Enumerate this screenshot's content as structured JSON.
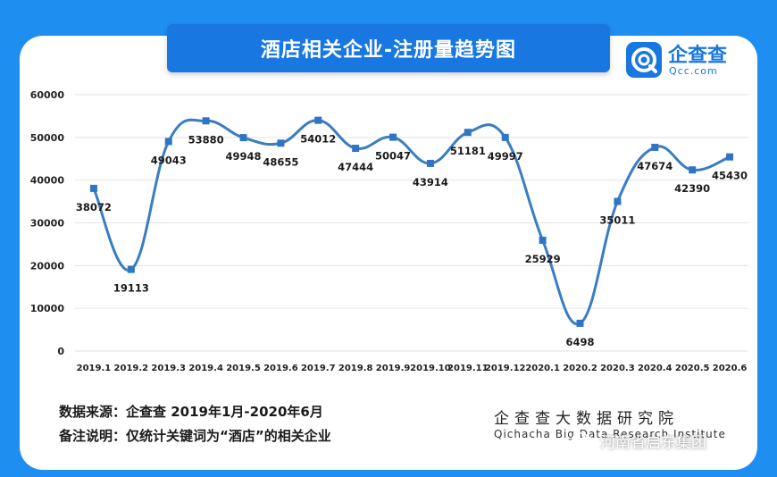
{
  "header": {
    "title": "酒店相关企业-注册量趋势图"
  },
  "logo": {
    "name_cn": "企查查",
    "name_en": "Qcc.com",
    "icon": "qcc-logo-icon"
  },
  "footer": {
    "source": "数据来源：企查查 2019年1月-2020年6月",
    "note": "备注说明：仅统计关键词为“酒店”的相关企业",
    "org_cn": "企查查大数据研究院",
    "org_en": "Qichacha Big Data Research Institute",
    "wechat_account": "河南省启东集团",
    "wechat_icon": "wechat-icon"
  },
  "colors": {
    "background": "#1e8ef0",
    "banner": "#1877e0",
    "line": "#3a7dc0",
    "marker": "#2f75c4",
    "grid": "#e2e2e2"
  },
  "chart_data": {
    "type": "line",
    "title": "",
    "xlabel": "",
    "ylabel": "",
    "categories": [
      "2019.1",
      "2019.2",
      "2019.3",
      "2019.4",
      "2019.5",
      "2019.6",
      "2019.7",
      "2019.8",
      "2019.9",
      "2019.10",
      "2019.11",
      "2019.12",
      "2020.1",
      "2020.2",
      "2020.3",
      "2020.4",
      "2020.5",
      "2020.6"
    ],
    "values": [
      38072,
      19113,
      49043,
      53880,
      49948,
      48655,
      54012,
      47444,
      50047,
      43914,
      51181,
      49997,
      25929,
      6498,
      35011,
      47674,
      42390,
      45430
    ],
    "ylim": [
      0,
      60000
    ],
    "yticks": [
      0,
      10000,
      20000,
      30000,
      40000,
      50000,
      60000
    ],
    "grid": true,
    "smooth": true,
    "data_labels": true
  }
}
